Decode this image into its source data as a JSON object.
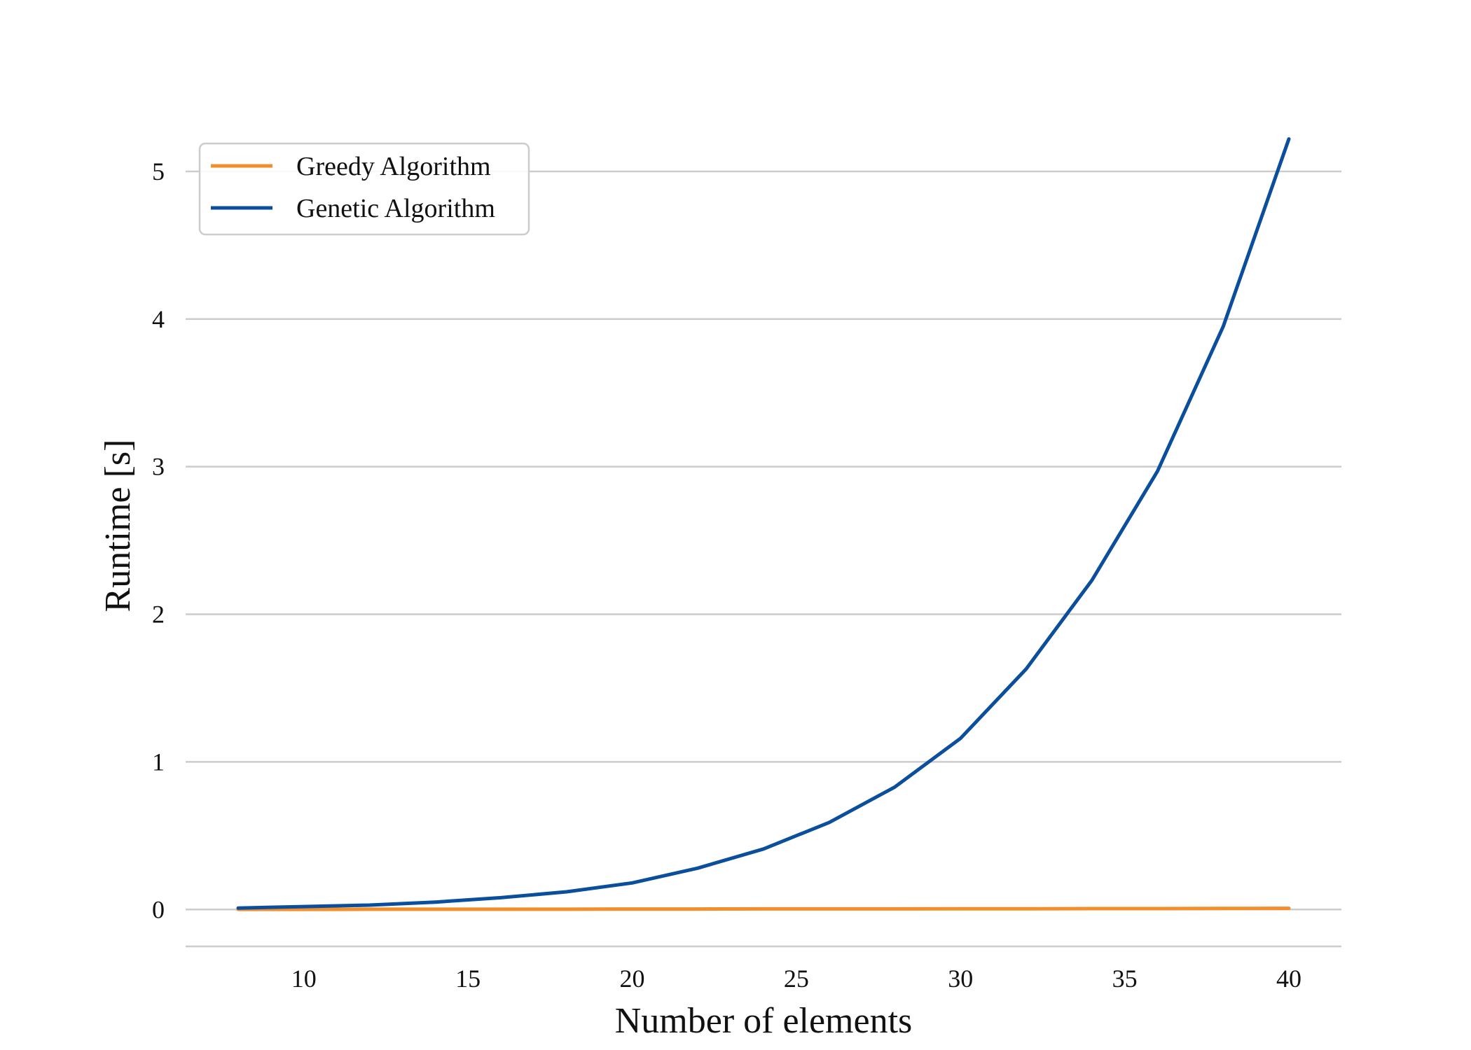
{
  "chart_data": {
    "type": "line",
    "title": "",
    "xlabel": "Number of elements",
    "ylabel": "Runtime [s]",
    "xlim": [
      6.4,
      41.6
    ],
    "ylim": [
      -0.25,
      5.45
    ],
    "xticks": [
      10,
      15,
      20,
      25,
      30,
      35,
      40
    ],
    "yticks": [
      0,
      1,
      2,
      3,
      4,
      5
    ],
    "grid": "horizontal",
    "legend_position": "top-left",
    "x": [
      8,
      10,
      12,
      14,
      16,
      18,
      20,
      22,
      24,
      26,
      28,
      30,
      32,
      34,
      36,
      38,
      40
    ],
    "series": [
      {
        "name": "Greedy Algorithm",
        "color": "#f28e2b",
        "values": [
          0.001,
          0.001,
          0.002,
          0.002,
          0.002,
          0.002,
          0.003,
          0.003,
          0.004,
          0.004,
          0.004,
          0.005,
          0.005,
          0.006,
          0.006,
          0.007,
          0.008
        ]
      },
      {
        "name": "Genetic Algorithm",
        "color": "#0b4f9c",
        "values": [
          0.01,
          0.02,
          0.03,
          0.05,
          0.08,
          0.12,
          0.18,
          0.28,
          0.41,
          0.59,
          0.83,
          1.16,
          1.63,
          2.23,
          2.97,
          3.95,
          5.22
        ]
      }
    ]
  }
}
